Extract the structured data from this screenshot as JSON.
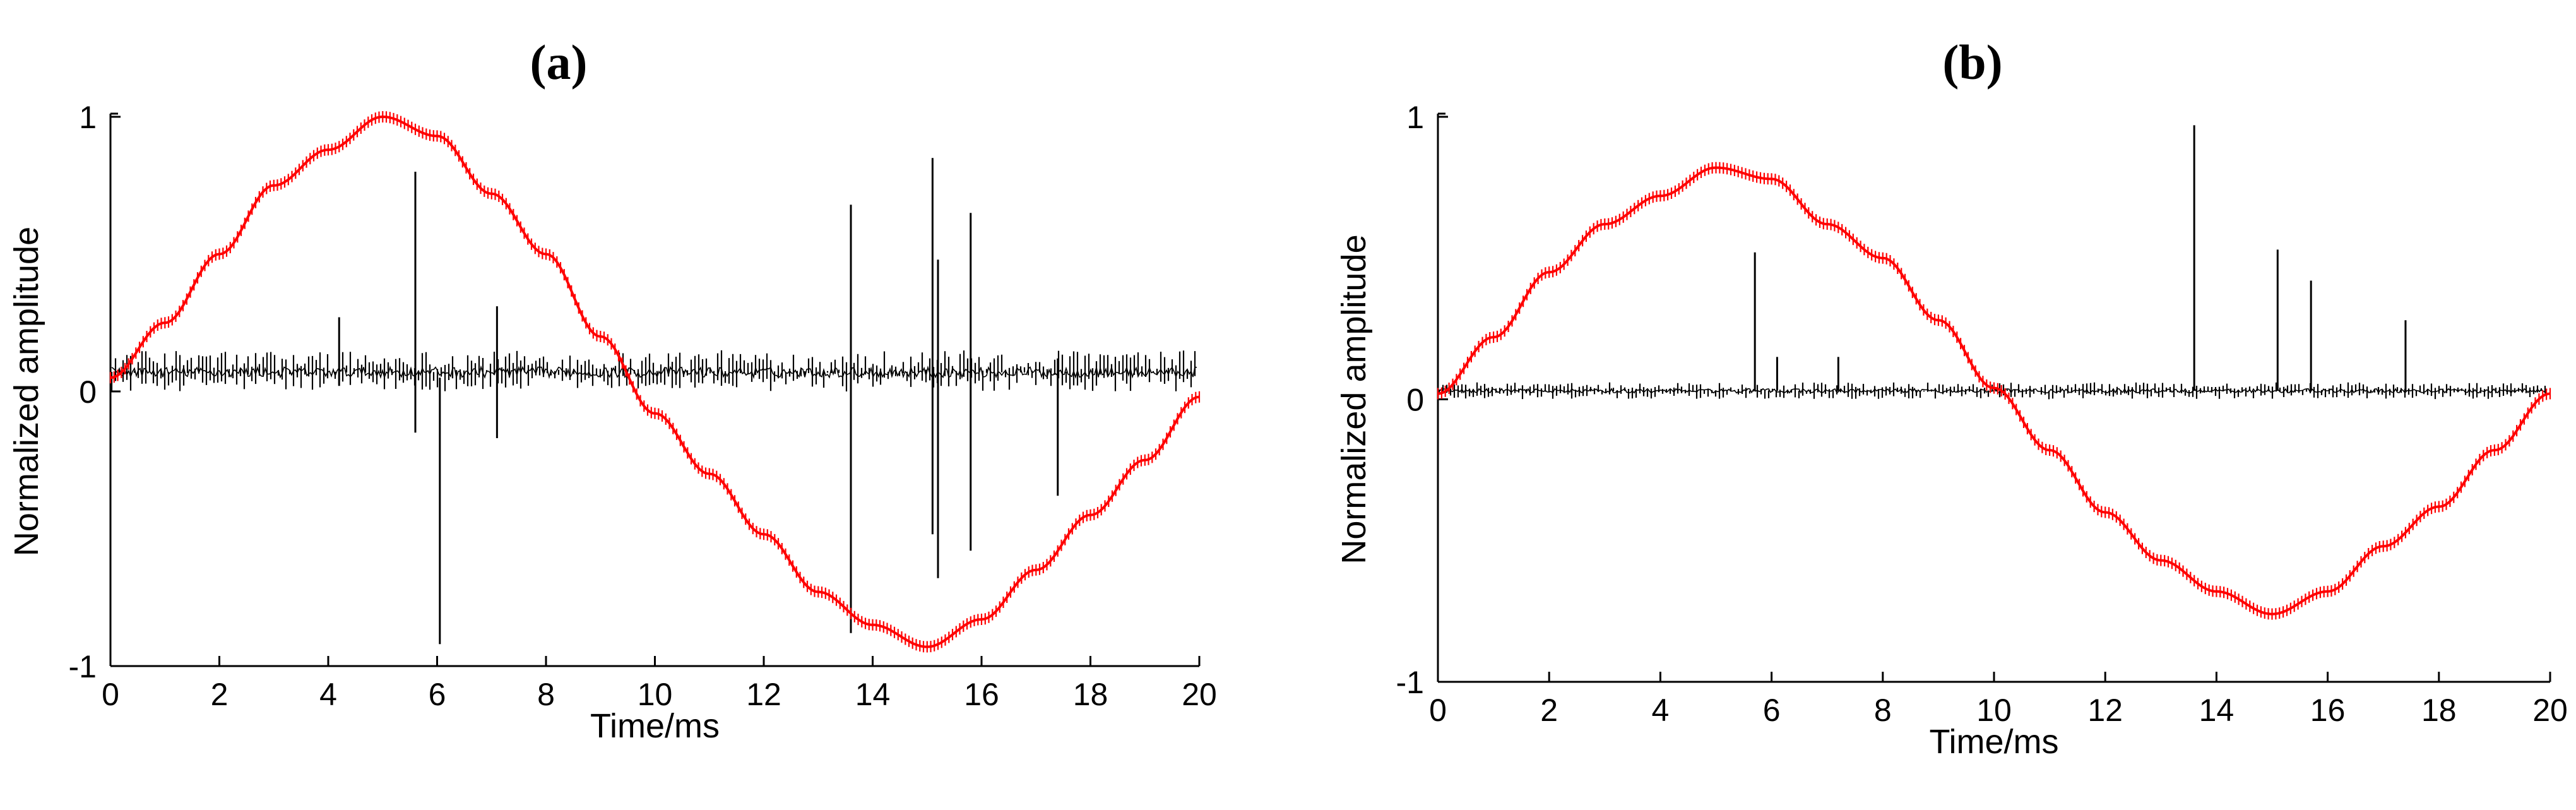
{
  "chart_data": [
    {
      "type": "line",
      "panel_label": "(a)",
      "xlabel": "Time/ms",
      "ylabel": "Normalized amplitude",
      "xlim": [
        0,
        20
      ],
      "ylim": [
        -1,
        1
      ],
      "xticks": [
        0,
        2,
        4,
        6,
        8,
        10,
        12,
        14,
        16,
        18,
        20
      ],
      "xtick_labels": [
        "0",
        "2",
        "4",
        "6",
        "8",
        "10",
        "12",
        "14",
        "16",
        "18",
        "20"
      ],
      "yticks": [
        -1,
        0,
        1
      ],
      "ytick_labels": [
        "-1",
        "0",
        "1"
      ],
      "grid": false,
      "series": [
        {
          "color": "#ff0000",
          "x": [
            0,
            1,
            2,
            3,
            4,
            5,
            6,
            7,
            8,
            9,
            10,
            11,
            12,
            13,
            14,
            15,
            16,
            17,
            18,
            19,
            20
          ],
          "y": [
            0.05,
            0.25,
            0.5,
            0.75,
            0.88,
            1.0,
            0.93,
            0.72,
            0.5,
            0.2,
            -0.08,
            -0.3,
            -0.52,
            -0.73,
            -0.85,
            -0.93,
            -0.83,
            -0.65,
            -0.45,
            -0.25,
            -0.02
          ]
        },
        {
          "color": "#000000",
          "kind": "noise_band",
          "center": 0.07,
          "band": [
            0.0,
            0.15
          ]
        }
      ],
      "spikes": [
        {
          "x": 5.6,
          "y1": -0.15,
          "y2": 0.8
        },
        {
          "x": 6.05,
          "y1": -0.92,
          "y2": 0.05
        },
        {
          "x": 7.1,
          "y1": -0.17,
          "y2": 0.31
        },
        {
          "x": 4.2,
          "y1": 0.02,
          "y2": 0.27
        },
        {
          "x": 13.6,
          "y1": -0.88,
          "y2": 0.68
        },
        {
          "x": 15.1,
          "y1": -0.52,
          "y2": 0.85
        },
        {
          "x": 15.2,
          "y1": -0.68,
          "y2": 0.48
        },
        {
          "x": 15.8,
          "y1": -0.58,
          "y2": 0.65
        },
        {
          "x": 17.4,
          "y1": -0.38,
          "y2": 0.12
        }
      ]
    },
    {
      "type": "line",
      "panel_label": "(b)",
      "xlabel": "Time/ms",
      "ylabel": "Normalized amplitude",
      "xlim": [
        0,
        20
      ],
      "ylim": [
        -1,
        1
      ],
      "xticks": [
        0,
        2,
        4,
        6,
        8,
        10,
        12,
        14,
        16,
        18,
        20
      ],
      "xtick_labels": [
        "0",
        "2",
        "4",
        "6",
        "8",
        "10",
        "12",
        "14",
        "16",
        "18",
        "20"
      ],
      "yticks": [
        -1,
        0,
        1
      ],
      "ytick_labels": [
        "-1",
        "0",
        "1"
      ],
      "grid": false,
      "series": [
        {
          "color": "#ff0000",
          "x": [
            0,
            1,
            2,
            3,
            4,
            5,
            6,
            7,
            8,
            9,
            10,
            11,
            12,
            13,
            14,
            15,
            16,
            17,
            18,
            19,
            20
          ],
          "y": [
            0.02,
            0.22,
            0.45,
            0.62,
            0.72,
            0.82,
            0.78,
            0.62,
            0.5,
            0.28,
            0.04,
            -0.18,
            -0.4,
            -0.57,
            -0.68,
            -0.76,
            -0.68,
            -0.52,
            -0.38,
            -0.18,
            0.02
          ]
        },
        {
          "color": "#000000",
          "kind": "noise_band",
          "center": 0.03,
          "band": [
            0.0,
            0.06
          ]
        }
      ],
      "spikes": [
        {
          "x": 5.7,
          "y1": 0.03,
          "y2": 0.52
        },
        {
          "x": 6.1,
          "y1": 0.03,
          "y2": 0.15
        },
        {
          "x": 7.2,
          "y1": 0.03,
          "y2": 0.15
        },
        {
          "x": 13.6,
          "y1": 0.03,
          "y2": 0.97
        },
        {
          "x": 15.1,
          "y1": 0.03,
          "y2": 0.53
        },
        {
          "x": 15.7,
          "y1": 0.03,
          "y2": 0.42
        },
        {
          "x": 17.4,
          "y1": 0.03,
          "y2": 0.28
        }
      ]
    }
  ]
}
